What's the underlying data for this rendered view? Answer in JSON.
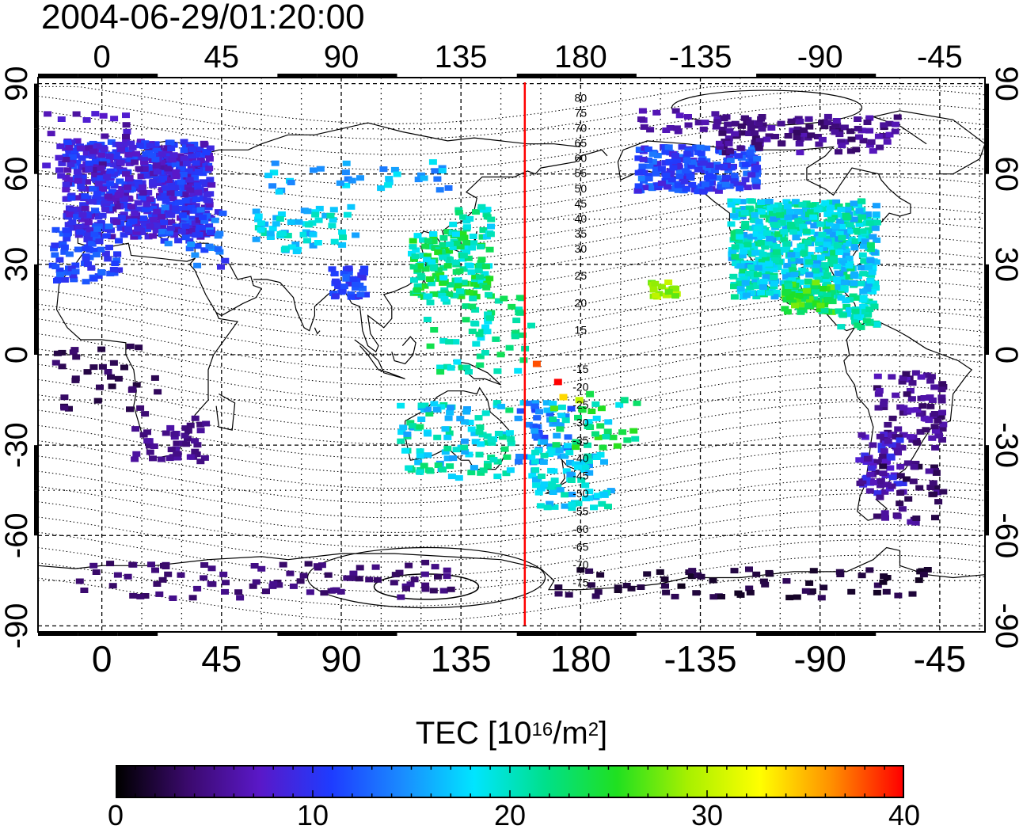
{
  "title": "2004-06-29/01:20:00",
  "map": {
    "lon_tick_labels": [
      "0",
      "45",
      "90",
      "135",
      "180",
      "-135",
      "-90",
      "-45"
    ],
    "lon_tick_values": [
      0,
      45,
      90,
      135,
      180,
      225,
      270,
      315
    ],
    "lat_tick_labels": [
      "90",
      "60",
      "30",
      "0",
      "-30",
      "-60",
      "-90"
    ],
    "lat_tick_values": [
      90,
      60,
      30,
      0,
      -30,
      -60,
      -90
    ],
    "lon_range": [
      -24,
      332
    ],
    "lat_range": [
      -92,
      92
    ],
    "meridian_line_lon": 159,
    "meridian_line_color": "#ff0000",
    "contour_labels_north": [
      "80",
      "75",
      "70",
      "65",
      "60",
      "55",
      "50",
      "45",
      "40",
      "35",
      "30",
      "25",
      "20",
      "15"
    ],
    "contour_labels_south": [
      "-15",
      "-20",
      "-25",
      "-30",
      "-35",
      "-40",
      "-45",
      "-50",
      "-55",
      "-60",
      "-65",
      "-70",
      "-75"
    ]
  },
  "colorbar": {
    "title_main": "TEC  [10",
    "title_sup1": "16",
    "title_mid": "/m",
    "title_sup2": "2",
    "title_end": "]",
    "min": 0,
    "max": 40,
    "tick_labels": [
      "0",
      "10",
      "20",
      "30",
      "40"
    ],
    "colors": [
      "#000000",
      "#3b0a6e",
      "#5a18c8",
      "#1e3cff",
      "#1a8cff",
      "#00e5ff",
      "#00e08a",
      "#20e020",
      "#a8f000",
      "#ffff00",
      "#ff9000",
      "#ff0000"
    ]
  }
}
